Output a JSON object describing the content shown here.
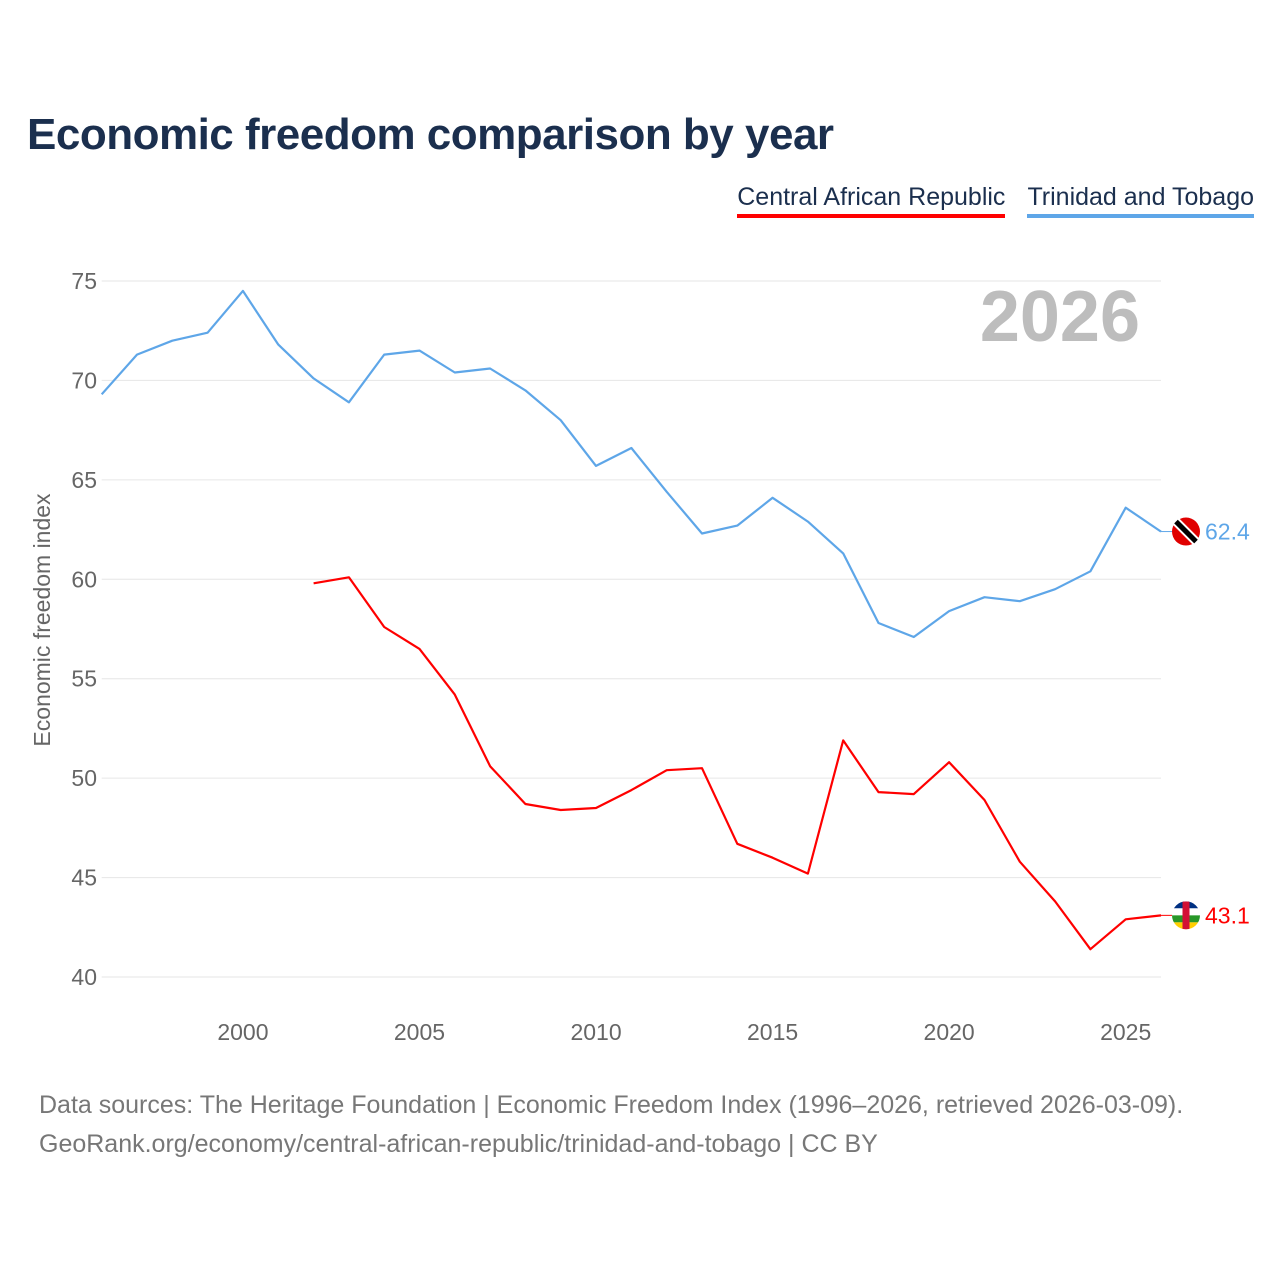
{
  "title": "Economic freedom comparison by year",
  "source_lines": [
    "Data sources: The Heritage Foundation | Economic Freedom Index (1996–2026, retrieved 2026-03-09).",
    "GeoRank.org/economy/central-african-republic/trinidad-and-tobago | CC BY"
  ],
  "chart_data": {
    "type": "line",
    "title": "Economic freedom comparison by year",
    "xlabel": "",
    "ylabel": "Economic freedom index",
    "xlim": [
      1996,
      2026
    ],
    "ylim": [
      40,
      75
    ],
    "xticks": [
      2000,
      2005,
      2010,
      2015,
      2020,
      2025
    ],
    "yticks": [
      40,
      45,
      50,
      55,
      60,
      65,
      70,
      75
    ],
    "grid": true,
    "legend_position": "top-right",
    "year_watermark": "2026",
    "series": [
      {
        "name": "Central African Republic",
        "color": "#ff0000",
        "end_label": "43.1",
        "x": [
          2002,
          2003,
          2004,
          2005,
          2006,
          2007,
          2008,
          2009,
          2010,
          2011,
          2012,
          2013,
          2014,
          2015,
          2016,
          2017,
          2018,
          2019,
          2020,
          2021,
          2022,
          2023,
          2024,
          2025,
          2026
        ],
        "values": [
          59.8,
          60.1,
          57.6,
          56.5,
          54.2,
          50.6,
          48.7,
          48.4,
          48.5,
          49.4,
          50.4,
          50.5,
          46.7,
          46.0,
          45.2,
          51.9,
          49.3,
          49.2,
          50.8,
          48.9,
          45.8,
          43.8,
          41.4,
          42.9,
          43.1
        ]
      },
      {
        "name": "Trinidad and Tobago",
        "color": "#5ea6e8",
        "end_label": "62.4",
        "x": [
          1996,
          1997,
          1998,
          1999,
          2000,
          2001,
          2002,
          2003,
          2004,
          2005,
          2006,
          2007,
          2008,
          2009,
          2010,
          2011,
          2012,
          2013,
          2014,
          2015,
          2016,
          2017,
          2018,
          2019,
          2020,
          2021,
          2022,
          2023,
          2024,
          2025,
          2026
        ],
        "values": [
          69.3,
          71.3,
          72.0,
          72.4,
          74.5,
          71.8,
          70.1,
          68.9,
          71.3,
          71.5,
          70.4,
          70.6,
          69.5,
          68.0,
          65.7,
          66.6,
          64.4,
          62.3,
          62.7,
          64.1,
          62.9,
          61.3,
          57.8,
          57.1,
          58.4,
          59.1,
          58.9,
          59.5,
          60.4,
          63.6,
          62.4
        ]
      }
    ]
  }
}
